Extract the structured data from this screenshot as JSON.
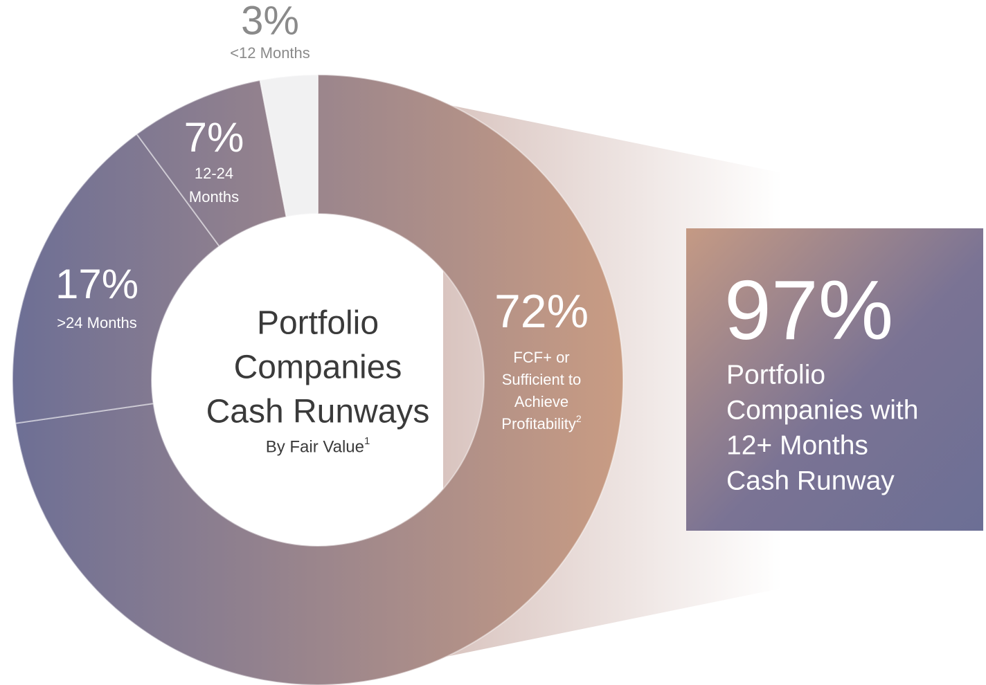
{
  "chart_data": {
    "type": "donut",
    "title": [
      "Portfolio",
      "Companies",
      "Cash Runways"
    ],
    "subtitle": "By Fair Value",
    "subtitle_footnote": "1",
    "categories": [
      [
        "FCF+ or",
        "Sufficient to",
        "Achieve",
        "Profitability"
      ],
      [
        ">24 Months"
      ],
      [
        "12-24",
        "Months"
      ],
      [
        "<12 Months"
      ]
    ],
    "category_footnotes": [
      "2",
      "",
      "",
      ""
    ],
    "values": [
      72,
      17,
      7,
      3
    ],
    "value_labels": [
      "72%",
      "17%",
      "7%",
      "3%"
    ],
    "colors": [
      "gradient",
      "gradient",
      "gradient",
      "#f1f1f2"
    ],
    "gradient": [
      "#6d6f95",
      "#c99c83"
    ],
    "callout": {
      "value": 97,
      "value_label": "97%",
      "text": [
        "Portfolio",
        "Companies with",
        "12+ Months",
        "Cash Runway"
      ]
    }
  }
}
